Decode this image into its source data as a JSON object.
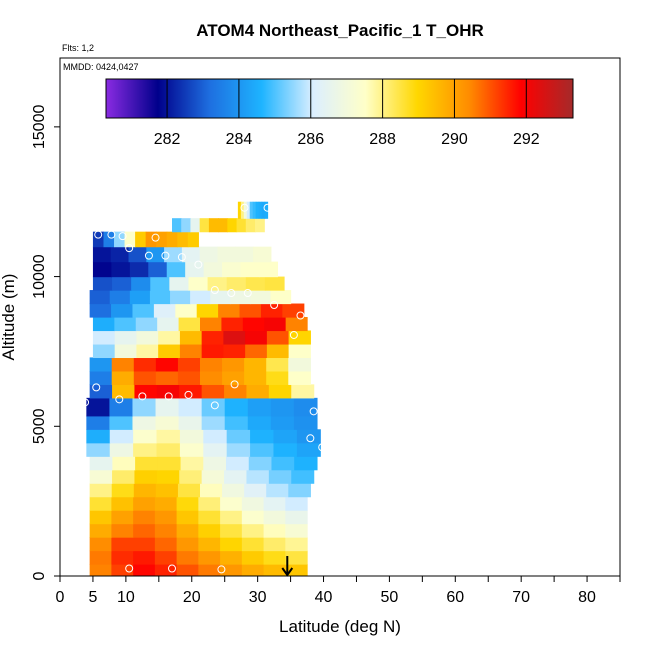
{
  "chart_data": {
    "type": "heatmap",
    "title": "ATOM4 Northeast_Pacific_1 T_OHR",
    "notes": {
      "flights": "Flts: 1,2",
      "dates": "MMDD: 0424,0427"
    },
    "xlabel": "Latitude (deg N)",
    "ylabel": "Altitude (m)",
    "xlim": [
      0,
      85
    ],
    "ylim": [
      0,
      17300
    ],
    "x_ticks": [
      0,
      5,
      10,
      20,
      30,
      40,
      50,
      60,
      70,
      80
    ],
    "x_minor_ticks": [
      15,
      25,
      35,
      45,
      55,
      65,
      75,
      85
    ],
    "y_ticks": [
      0,
      5000,
      10000,
      15000
    ],
    "grid": false,
    "colorbar": {
      "placement": "top, inside plot",
      "range": [
        280.3,
        293.3
      ],
      "ticks": [
        282,
        284,
        286,
        288,
        290,
        292
      ],
      "colors": [
        "#8A2BE2",
        "#00008B",
        "#1E6FE0",
        "#1EB4FF",
        "#DCEFFF",
        "#FFFFC8",
        "#FFD700",
        "#FF8C00",
        "#FF0000",
        "#A52A2A"
      ]
    },
    "marker_annotation": {
      "type": "down-arrow",
      "x": 34.5,
      "y": 0
    },
    "layers": [
      {
        "y0": 0,
        "y1": 400,
        "x0": 4.5,
        "x1": 37.5,
        "temps": [
          290.5,
          291.2,
          291.8,
          291.5,
          291.0,
          290.6,
          290.2,
          289.8,
          289.5,
          289.3
        ]
      },
      {
        "y0": 400,
        "y1": 850,
        "x0": 4.5,
        "x1": 37.5,
        "temps": [
          290.6,
          291.4,
          291.6,
          291.2,
          290.6,
          290.2,
          289.7,
          289.2,
          288.8,
          288.5
        ]
      },
      {
        "y0": 850,
        "y1": 1300,
        "x0": 4.5,
        "x1": 37.5,
        "temps": [
          290.4,
          291.2,
          291.2,
          290.8,
          290.2,
          289.6,
          289.0,
          288.6,
          288.2,
          287.9
        ]
      },
      {
        "y0": 1300,
        "y1": 1750,
        "x0": 4.5,
        "x1": 37.5,
        "temps": [
          289.8,
          290.5,
          290.8,
          290.5,
          289.8,
          289.1,
          288.5,
          288.0,
          287.6,
          287.2
        ]
      },
      {
        "y0": 1750,
        "y1": 2200,
        "x0": 4.5,
        "x1": 37.5,
        "temps": [
          289.3,
          290.0,
          290.5,
          290.2,
          289.3,
          288.6,
          288.0,
          287.4,
          287.0,
          286.6
        ]
      },
      {
        "y0": 2200,
        "y1": 2650,
        "x0": 4.5,
        "x1": 37.5,
        "temps": [
          288.6,
          289.4,
          290.0,
          289.8,
          288.9,
          288.1,
          287.4,
          286.9,
          286.4,
          286.0
        ]
      },
      {
        "y0": 2650,
        "y1": 3100,
        "x0": 4.5,
        "x1": 38.0,
        "temps": [
          288.0,
          288.8,
          289.6,
          289.4,
          288.5,
          287.6,
          286.9,
          286.3,
          285.8,
          285.4
        ]
      },
      {
        "y0": 3100,
        "y1": 3550,
        "x0": 4.5,
        "x1": 38.5,
        "temps": [
          287.2,
          288.2,
          289.1,
          289.0,
          288.1,
          287.1,
          286.4,
          285.8,
          285.3,
          284.9
        ]
      },
      {
        "y0": 3550,
        "y1": 4000,
        "x0": 4.5,
        "x1": 39.0,
        "temps": [
          286.5,
          287.6,
          288.6,
          288.6,
          287.8,
          286.8,
          286.0,
          285.4,
          284.9,
          284.6
        ]
      },
      {
        "y0": 4000,
        "y1": 4450,
        "x0": 4.0,
        "x1": 39.5,
        "temps": [
          285.5,
          286.8,
          288.0,
          288.2,
          287.4,
          286.4,
          285.6,
          285.0,
          284.6,
          284.3
        ]
      },
      {
        "y0": 4450,
        "y1": 4900,
        "x0": 4.0,
        "x1": 39.5,
        "temps": [
          284.5,
          286.0,
          287.4,
          287.8,
          287.0,
          286.0,
          285.2,
          284.6,
          284.3,
          284.0
        ]
      },
      {
        "y0": 4900,
        "y1": 5350,
        "x0": 4.0,
        "x1": 39.0,
        "temps": [
          283.5,
          285.0,
          286.8,
          287.2,
          286.6,
          285.6,
          284.9,
          284.4,
          284.1,
          283.9
        ]
      },
      {
        "y0": 5350,
        "y1": 5950,
        "x0": 4.0,
        "x1": 39.0,
        "temps": [
          282.0,
          283.5,
          285.5,
          286.5,
          286.0,
          285.2,
          284.6,
          284.2,
          284.0,
          283.8
        ]
      },
      {
        "y0": 5950,
        "y1": 6400,
        "x0": 4.5,
        "x1": 38.5,
        "temps": [
          283.0,
          289.5,
          291.8,
          292.0,
          291.6,
          291.0,
          290.5,
          289.8,
          289.0,
          287.8
        ]
      },
      {
        "y0": 6400,
        "y1": 6850,
        "x0": 4.5,
        "x1": 38.0,
        "temps": [
          283.5,
          289.8,
          291.0,
          290.8,
          291.0,
          290.4,
          290.0,
          289.6,
          288.8,
          287.5
        ]
      },
      {
        "y0": 6850,
        "y1": 7300,
        "x0": 4.5,
        "x1": 38.0,
        "temps": [
          284.0,
          290.5,
          291.4,
          291.8,
          291.2,
          290.5,
          290.2,
          289.6,
          288.4,
          287.0
        ]
      },
      {
        "y0": 7300,
        "y1": 7750,
        "x0": 5.0,
        "x1": 38.0,
        "temps": [
          285.5,
          287.0,
          287.8,
          289.2,
          290.5,
          291.6,
          291.5,
          290.8,
          289.5,
          287.5
        ]
      },
      {
        "y0": 7750,
        "y1": 8200,
        "x0": 5.0,
        "x1": 38.0,
        "temps": [
          286.0,
          286.5,
          287.0,
          287.8,
          289.5,
          291.5,
          292.4,
          292.0,
          291.0,
          289.0
        ]
      },
      {
        "y0": 8200,
        "y1": 8650,
        "x0": 5.0,
        "x1": 37.5,
        "temps": [
          284.5,
          285.0,
          285.5,
          286.5,
          288.5,
          290.5,
          291.5,
          291.8,
          292.0,
          290.5
        ]
      },
      {
        "y0": 8650,
        "y1": 9100,
        "x0": 4.5,
        "x1": 37.0,
        "temps": [
          283.2,
          284.0,
          285.0,
          286.2,
          287.5,
          289.0,
          290.5,
          291.0,
          291.5,
          291.2
        ]
      },
      {
        "y0": 9100,
        "y1": 9550,
        "x0": 4.5,
        "x1": 35.0,
        "temps": [
          283.0,
          283.5,
          284.2,
          285.0,
          285.5,
          286.0,
          286.5,
          286.8,
          287.0,
          287.5
        ]
      },
      {
        "y0": 9550,
        "y1": 10000,
        "x0": 5.0,
        "x1": 34.0,
        "temps": [
          282.8,
          283.0,
          283.8,
          285.0,
          286.5,
          287.5,
          288.0,
          288.2,
          288.4,
          288.5
        ]
      },
      {
        "y0": 10000,
        "y1": 10500,
        "x0": 5.0,
        "x1": 33.0,
        "temps": [
          281.8,
          282.0,
          282.3,
          283.0,
          285.0,
          286.5,
          287.0,
          287.3,
          287.5,
          287.5
        ]
      },
      {
        "y0": 10500,
        "y1": 11000,
        "x0": 5.0,
        "x1": 32.0,
        "temps": [
          282.0,
          282.2,
          282.8,
          284.0,
          285.6,
          286.4,
          286.8,
          287.0,
          287.0,
          287.2
        ]
      },
      {
        "y0": 11000,
        "y1": 11500,
        "x0": 5.0,
        "x1": 21.0,
        "temps": [
          282.5,
          283.5,
          285.5,
          287.5,
          289.2,
          290.2,
          290.0,
          289.8,
          289.5,
          289.2
        ]
      },
      {
        "y0": 11500,
        "y1": 11950,
        "x0": 17.0,
        "x1": 31.0,
        "temps": [
          285.0,
          285.5,
          286.5,
          288.5,
          289.5,
          289.5,
          289.0,
          288.6,
          288.2,
          288.0
        ]
      },
      {
        "y0": 11950,
        "y1": 12500,
        "x0": 27.0,
        "x1": 31.5,
        "temps": [
          289.0,
          288.0,
          287.0,
          286.0,
          285.0,
          284.8,
          284.6,
          284.5,
          284.4,
          284.5
        ]
      }
    ],
    "sample_points": [
      {
        "x": 3.8,
        "y": 250
      },
      {
        "x": 10.5,
        "y": 250
      },
      {
        "x": 17.0,
        "y": 250
      },
      {
        "x": 24.5,
        "y": 220
      },
      {
        "x": 3.8,
        "y": 5800
      },
      {
        "x": 9.0,
        "y": 5900
      },
      {
        "x": 12.5,
        "y": 6000
      },
      {
        "x": 16.5,
        "y": 6000
      },
      {
        "x": 19.5,
        "y": 6050
      },
      {
        "x": 23.5,
        "y": 5700
      },
      {
        "x": 38.5,
        "y": 5500
      },
      {
        "x": 38.0,
        "y": 4600
      },
      {
        "x": 39.8,
        "y": 4300
      },
      {
        "x": 5.5,
        "y": 6300
      },
      {
        "x": 26.5,
        "y": 6400
      },
      {
        "x": 35.5,
        "y": 8050
      },
      {
        "x": 36.5,
        "y": 8700
      },
      {
        "x": 32.5,
        "y": 9050
      },
      {
        "x": 23.5,
        "y": 9550
      },
      {
        "x": 26.0,
        "y": 9450
      },
      {
        "x": 28.5,
        "y": 9450
      },
      {
        "x": 21.0,
        "y": 10400
      },
      {
        "x": 18.5,
        "y": 10650
      },
      {
        "x": 16.0,
        "y": 10700
      },
      {
        "x": 13.5,
        "y": 10700
      },
      {
        "x": 10.5,
        "y": 10950
      },
      {
        "x": 5.8,
        "y": 11400
      },
      {
        "x": 7.8,
        "y": 11400
      },
      {
        "x": 9.5,
        "y": 11350
      },
      {
        "x": 14.5,
        "y": 11300
      },
      {
        "x": 28.0,
        "y": 12300
      },
      {
        "x": 31.5,
        "y": 12300
      }
    ]
  }
}
